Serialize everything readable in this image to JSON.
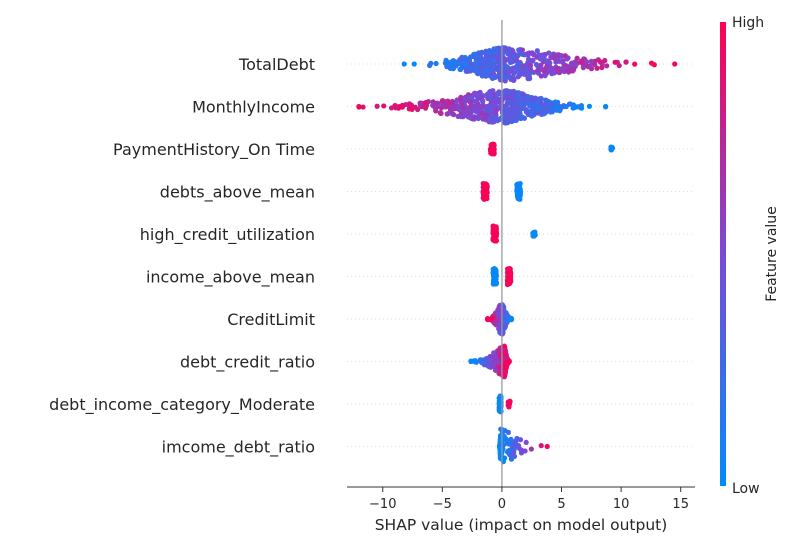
{
  "chart_data": {
    "type": "scatter",
    "subtype": "shap-beeswarm",
    "title": "",
    "xlabel": "SHAP value (impact on model output)",
    "xlim": [
      -13,
      16.2
    ],
    "xticks": [
      {
        "value": -10,
        "label": "−10"
      },
      {
        "value": -5,
        "label": "−5"
      },
      {
        "value": 0,
        "label": "0"
      },
      {
        "value": 5,
        "label": "5"
      },
      {
        "value": 10,
        "label": "10"
      },
      {
        "value": 15,
        "label": "15"
      }
    ],
    "colorbar": {
      "title": "Feature value",
      "high_label": "High",
      "low_label": "Low",
      "low_color": "#008bfb",
      "high_color": "#ff0052"
    },
    "features": [
      {
        "name": "TotalDebt",
        "kind": "continuous",
        "direction": 1,
        "min": -8.2,
        "max": 14.5,
        "peak": 0.3,
        "spread": 2.6,
        "tail_right": 4.5,
        "tail_left": 2.2,
        "n": 520,
        "max_height": 17
      },
      {
        "name": "MonthlyIncome",
        "kind": "continuous",
        "direction": -1,
        "min": -12.0,
        "max": 8.7,
        "peak": 0.0,
        "spread": 2.8,
        "tail_right": 2.8,
        "tail_left": 4.0,
        "n": 520,
        "max_height": 17
      },
      {
        "name": "PaymentHistory_On Time",
        "kind": "binary",
        "groups": [
          {
            "value": -0.8,
            "color": "high",
            "width": 0.15,
            "height": 10,
            "n": 60
          },
          {
            "value": 9.2,
            "color": "low",
            "width": 0.08,
            "height": 4,
            "n": 14
          }
        ]
      },
      {
        "name": "debts_above_mean",
        "kind": "binary",
        "groups": [
          {
            "value": -1.4,
            "color": "high",
            "width": 0.18,
            "height": 16,
            "n": 70
          },
          {
            "value": 1.4,
            "color": "low",
            "width": 0.15,
            "height": 16,
            "n": 70
          }
        ]
      },
      {
        "name": "high_credit_utilization",
        "kind": "binary",
        "groups": [
          {
            "value": -0.6,
            "color": "high",
            "width": 0.15,
            "height": 16,
            "n": 60
          },
          {
            "value": 2.7,
            "color": "low",
            "width": 0.12,
            "height": 4,
            "n": 14
          }
        ]
      },
      {
        "name": "income_above_mean",
        "kind": "binary",
        "groups": [
          {
            "value": -0.6,
            "color": "low",
            "width": 0.14,
            "height": 16,
            "n": 60
          },
          {
            "value": 0.6,
            "color": "high",
            "width": 0.14,
            "height": 16,
            "n": 60
          }
        ]
      },
      {
        "name": "CreditLimit",
        "kind": "continuous",
        "direction": -1,
        "min": -1.2,
        "max": 0.8,
        "peak": 0.0,
        "spread": 0.35,
        "tail_right": 0.4,
        "tail_left": 0.5,
        "n": 200,
        "max_height": 16
      },
      {
        "name": "debt_credit_ratio",
        "kind": "continuous",
        "direction": 1,
        "min": -2.6,
        "max": 0.6,
        "peak": 0.2,
        "spread": 0.25,
        "tail_right": 0.2,
        "tail_left": 1.0,
        "n": 220,
        "max_height": 16
      },
      {
        "name": "debt_income_category_Moderate",
        "kind": "binary",
        "groups": [
          {
            "value": -0.15,
            "color": "low",
            "width": 0.08,
            "height": 16,
            "n": 60
          },
          {
            "value": 0.6,
            "color": "high",
            "width": 0.08,
            "height": 6,
            "n": 16
          }
        ]
      },
      {
        "name": "imcome_debt_ratio",
        "kind": "continuous",
        "direction": 1,
        "min": -0.2,
        "max": 3.8,
        "peak": -0.1,
        "spread": 0.05,
        "tail_right": 1.2,
        "tail_left": 0.05,
        "n": 130,
        "max_height": 18
      }
    ]
  }
}
